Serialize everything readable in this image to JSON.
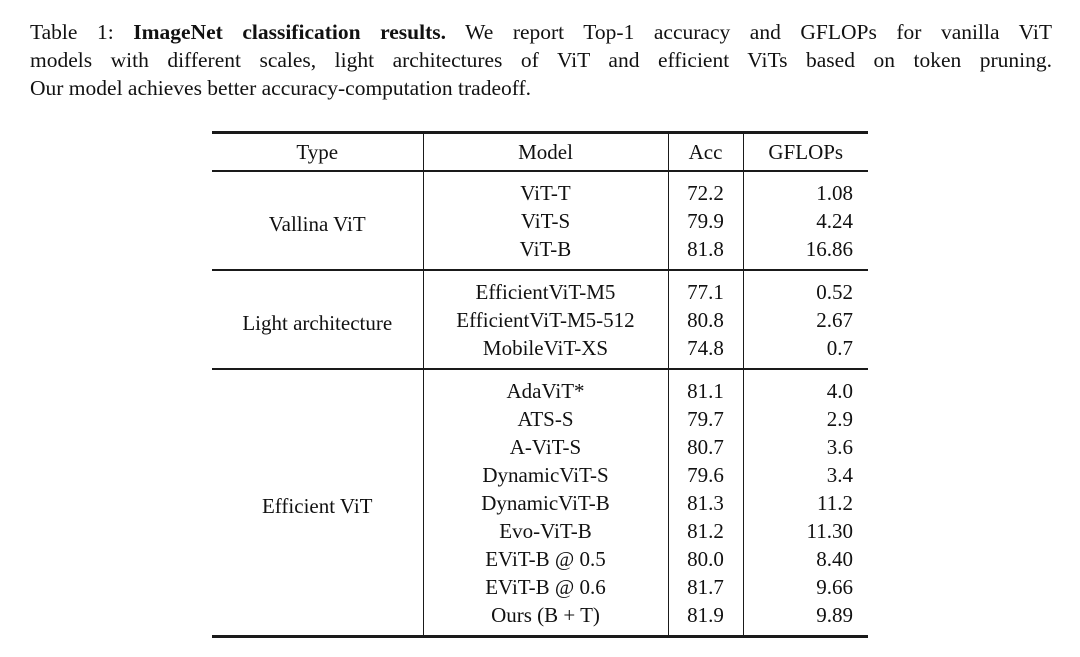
{
  "caption": {
    "line1_prefix": "Table 1: ",
    "line1_bold": "ImageNet classification results.",
    "line1_rest": " We report Top-1 accuracy and GFLOPs for vanilla ViT",
    "line2": "models with different scales, light architectures of ViT and efficient ViTs based on token pruning.",
    "line3": "Our model achieves better accuracy-computation tradeoff."
  },
  "table": {
    "headers": [
      "Type",
      "Model",
      "Acc",
      "GFLOPs"
    ],
    "sections": [
      {
        "type": "Vallina ViT",
        "rows": [
          [
            "ViT-T",
            "72.2",
            "1.08"
          ],
          [
            "ViT-S",
            "79.9",
            "4.24"
          ],
          [
            "ViT-B",
            "81.8",
            "16.86"
          ]
        ]
      },
      {
        "type": "Light architecture",
        "rows": [
          [
            "EfficientViT-M5",
            "77.1",
            "0.52"
          ],
          [
            "EfficientViT-M5-512",
            "80.8",
            "2.67"
          ],
          [
            "MobileViT-XS",
            "74.8",
            "0.7"
          ]
        ]
      },
      {
        "type": "Efficient ViT",
        "rows": [
          [
            "AdaViT*",
            "81.1",
            "4.0"
          ],
          [
            "ATS-S",
            "79.7",
            "2.9"
          ],
          [
            "A-ViT-S",
            "80.7",
            "3.6"
          ],
          [
            "DynamicViT-S",
            "79.6",
            "3.4"
          ],
          [
            "DynamicViT-B",
            "81.3",
            "11.2"
          ],
          [
            "Evo-ViT-B",
            "81.2",
            "11.30"
          ],
          [
            "EViT-B @ 0.5",
            "80.0",
            "8.40"
          ],
          [
            "EViT-B @ 0.6",
            "81.7",
            "9.66"
          ],
          [
            "Ours (B + T)",
            "81.9",
            "9.89"
          ]
        ]
      }
    ],
    "text_color": "#111111",
    "rule_color": "#1a1a1a"
  }
}
